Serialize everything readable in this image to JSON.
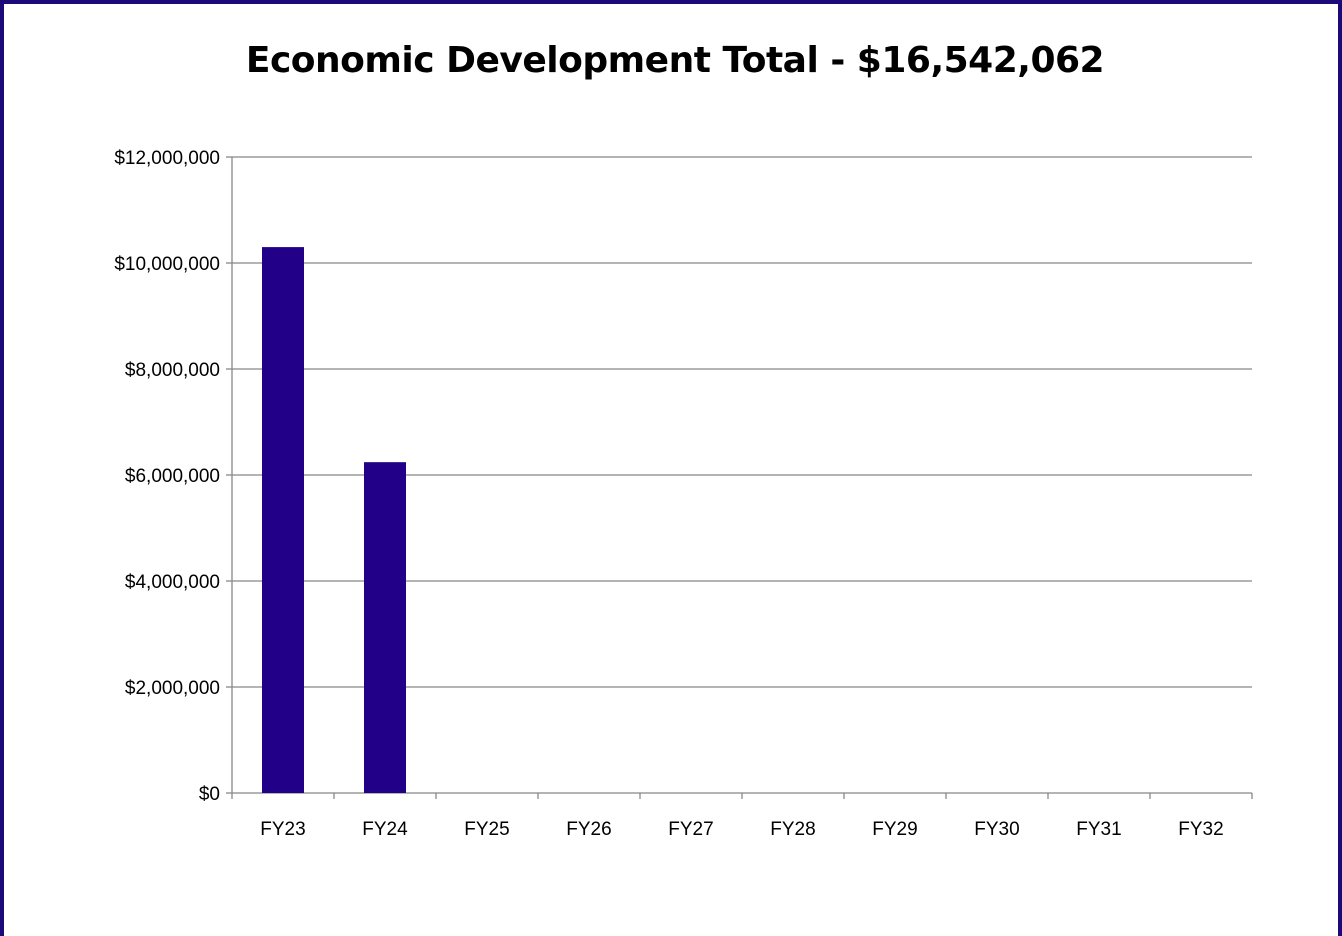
{
  "chart_data": {
    "type": "bar",
    "title": "Economic Development Total - $16,542,062",
    "categories": [
      "FY23",
      "FY24",
      "FY25",
      "FY26",
      "FY27",
      "FY28",
      "FY29",
      "FY30",
      "FY31",
      "FY32"
    ],
    "series": [
      {
        "values": [
          10300000,
          6242062,
          0,
          0,
          0,
          0,
          0,
          0,
          0,
          0
        ]
      }
    ],
    "y_ticks": [
      "$0",
      "$2,000,000",
      "$4,000,000",
      "$6,000,000",
      "$8,000,000",
      "$10,000,000",
      "$12,000,000"
    ],
    "ylim": [
      0,
      12000000
    ],
    "xlabel": "",
    "ylabel": "",
    "grid": true,
    "legend": "none",
    "colors": {
      "bar": "#220088",
      "frame": "#1d0a7a",
      "grid": "#888888",
      "axis": "#888888"
    }
  }
}
